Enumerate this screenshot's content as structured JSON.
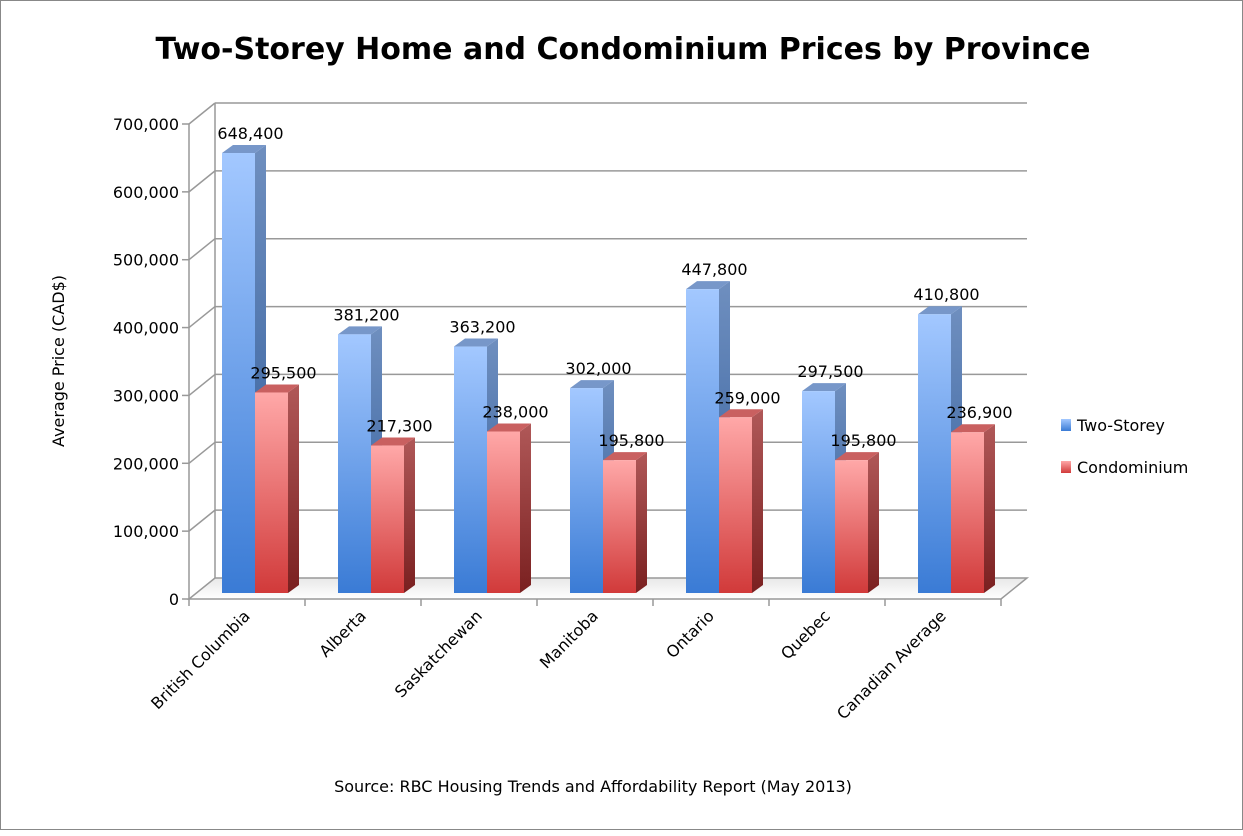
{
  "chart_data": {
    "type": "bar",
    "style": "3d-clustered-column",
    "title": "Two-Storey Home and Condominium Prices by Province",
    "xlabel": "",
    "ylabel": "Average Price (CAD$)",
    "source": "Source: RBC Housing Trends and Affordability Report (May 2013)",
    "categories": [
      "British Columbia",
      "Alberta",
      "Saskatchewan",
      "Manitoba",
      "Ontario",
      "Quebec",
      "Canadian Average"
    ],
    "series": [
      {
        "name": "Two-Storey",
        "color": "#4a86d8",
        "values": [
          648400,
          381200,
          363200,
          302000,
          447800,
          297500,
          410800
        ],
        "labels": [
          "648,400",
          "381,200",
          "363,200",
          "302,000",
          "447,800",
          "297,500",
          "410,800"
        ]
      },
      {
        "name": "Condominium",
        "color": "#d94040",
        "values": [
          295500,
          217300,
          238000,
          195800,
          259000,
          195800,
          236900
        ],
        "labels": [
          "295,500",
          "217,300",
          "238,000",
          "195,800",
          "259,000",
          "195,800",
          "236,900"
        ]
      }
    ],
    "ylim": [
      0,
      700000
    ],
    "yticks": [
      0,
      100000,
      200000,
      300000,
      400000,
      500000,
      600000,
      700000
    ],
    "ytick_labels": [
      "0",
      "100,000",
      "200,000",
      "300,000",
      "400,000",
      "500,000",
      "600,000",
      "700,000"
    ],
    "grid": true,
    "legend": "right"
  }
}
